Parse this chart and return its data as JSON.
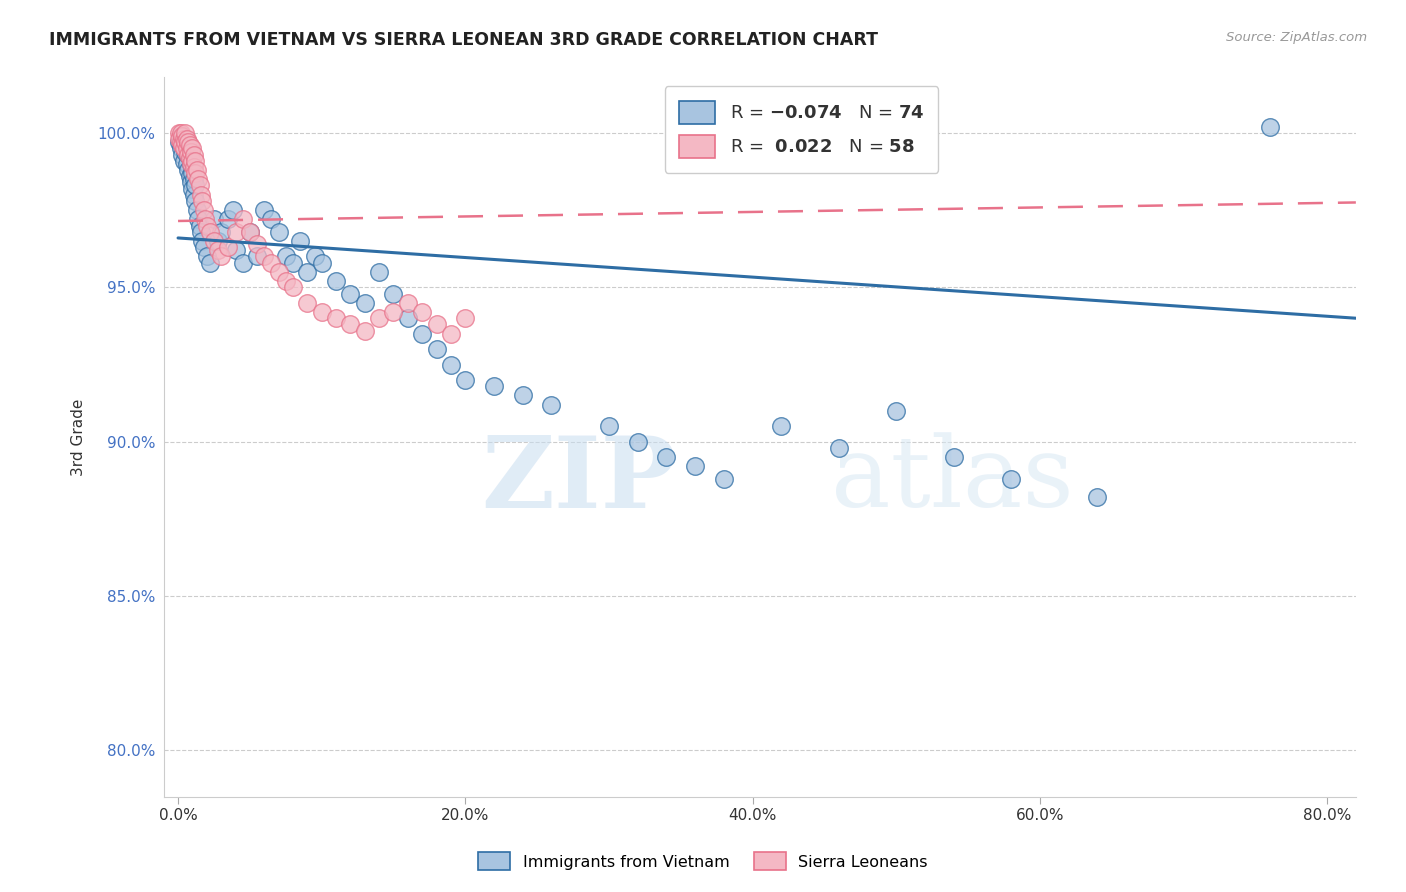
{
  "title": "IMMIGRANTS FROM VIETNAM VS SIERRA LEONEAN 3RD GRADE CORRELATION CHART",
  "source": "Source: ZipAtlas.com",
  "xlabel_ticks": [
    "0.0%",
    "20.0%",
    "40.0%",
    "60.0%",
    "80.0%"
  ],
  "ylabel_ticks": [
    "80.0%",
    "85.0%",
    "90.0%",
    "95.0%",
    "100.0%"
  ],
  "xlabel_values": [
    0.0,
    0.2,
    0.4,
    0.6,
    0.8
  ],
  "ylabel_values": [
    0.8,
    0.85,
    0.9,
    0.95,
    1.0
  ],
  "xlim": [
    -0.01,
    0.82
  ],
  "ylim": [
    0.785,
    1.018
  ],
  "ylabel_label": "3rd Grade",
  "legend_blue_n": "74",
  "legend_pink_r": "0.022",
  "legend_pink_n": "58",
  "blue_color": "#a8c4e0",
  "blue_line_color": "#2e6da4",
  "pink_color": "#f4b8c4",
  "pink_line_color": "#e8728a",
  "watermark_zip": "ZIP",
  "watermark_atlas": "atlas",
  "blue_line_x0": 0.0,
  "blue_line_x1": 0.82,
  "blue_line_y0": 0.966,
  "blue_line_y1": 0.94,
  "pink_line_x0": 0.0,
  "pink_line_x1": 0.82,
  "pink_line_y0": 0.9715,
  "pink_line_y1": 0.9775,
  "blue_scatter_x": [
    0.001,
    0.002,
    0.002,
    0.003,
    0.003,
    0.004,
    0.004,
    0.005,
    0.005,
    0.006,
    0.006,
    0.007,
    0.007,
    0.008,
    0.008,
    0.009,
    0.009,
    0.01,
    0.01,
    0.011,
    0.011,
    0.012,
    0.012,
    0.013,
    0.014,
    0.015,
    0.016,
    0.017,
    0.018,
    0.02,
    0.022,
    0.025,
    0.028,
    0.03,
    0.035,
    0.038,
    0.04,
    0.045,
    0.05,
    0.055,
    0.06,
    0.065,
    0.07,
    0.075,
    0.08,
    0.085,
    0.09,
    0.095,
    0.1,
    0.11,
    0.12,
    0.13,
    0.14,
    0.15,
    0.16,
    0.17,
    0.18,
    0.19,
    0.2,
    0.22,
    0.24,
    0.26,
    0.3,
    0.32,
    0.34,
    0.36,
    0.38,
    0.42,
    0.46,
    0.5,
    0.54,
    0.58,
    0.64,
    0.76
  ],
  "blue_scatter_y": [
    0.997,
    0.999,
    0.995,
    0.998,
    0.993,
    0.996,
    0.991,
    0.998,
    0.994,
    0.997,
    0.99,
    0.993,
    0.988,
    0.992,
    0.986,
    0.99,
    0.984,
    0.987,
    0.982,
    0.985,
    0.98,
    0.983,
    0.978,
    0.975,
    0.972,
    0.97,
    0.968,
    0.965,
    0.963,
    0.96,
    0.958,
    0.972,
    0.965,
    0.968,
    0.972,
    0.975,
    0.962,
    0.958,
    0.968,
    0.96,
    0.975,
    0.972,
    0.968,
    0.96,
    0.958,
    0.965,
    0.955,
    0.96,
    0.958,
    0.952,
    0.948,
    0.945,
    0.955,
    0.948,
    0.94,
    0.935,
    0.93,
    0.925,
    0.92,
    0.918,
    0.915,
    0.912,
    0.905,
    0.9,
    0.895,
    0.892,
    0.888,
    0.905,
    0.898,
    0.91,
    0.895,
    0.888,
    0.882,
    1.002
  ],
  "pink_scatter_x": [
    0.001,
    0.001,
    0.002,
    0.002,
    0.003,
    0.003,
    0.004,
    0.004,
    0.005,
    0.005,
    0.006,
    0.006,
    0.007,
    0.007,
    0.008,
    0.008,
    0.009,
    0.009,
    0.01,
    0.01,
    0.011,
    0.011,
    0.012,
    0.012,
    0.013,
    0.014,
    0.015,
    0.016,
    0.017,
    0.018,
    0.019,
    0.02,
    0.022,
    0.025,
    0.028,
    0.03,
    0.035,
    0.04,
    0.045,
    0.05,
    0.055,
    0.06,
    0.065,
    0.07,
    0.075,
    0.08,
    0.09,
    0.1,
    0.11,
    0.12,
    0.13,
    0.14,
    0.15,
    0.16,
    0.17,
    0.18,
    0.19,
    0.2
  ],
  "pink_scatter_y": [
    1.0,
    0.998,
    1.0,
    0.997,
    0.999,
    0.996,
    0.998,
    0.995,
    1.0,
    0.997,
    0.998,
    0.995,
    0.997,
    0.993,
    0.996,
    0.992,
    0.994,
    0.99,
    0.995,
    0.991,
    0.993,
    0.989,
    0.991,
    0.987,
    0.988,
    0.985,
    0.983,
    0.98,
    0.978,
    0.975,
    0.972,
    0.97,
    0.968,
    0.965,
    0.962,
    0.96,
    0.963,
    0.968,
    0.972,
    0.968,
    0.964,
    0.96,
    0.958,
    0.955,
    0.952,
    0.95,
    0.945,
    0.942,
    0.94,
    0.938,
    0.936,
    0.94,
    0.942,
    0.945,
    0.942,
    0.938,
    0.935,
    0.94
  ]
}
